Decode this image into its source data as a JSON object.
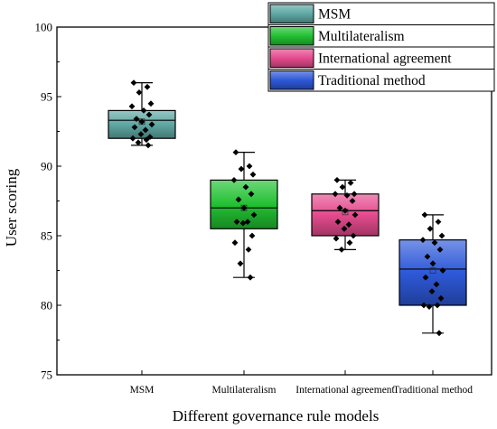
{
  "chart_data": {
    "type": "box",
    "xlabel": "Different governance rule models",
    "ylabel": "User scoring",
    "ylim": [
      75,
      100
    ],
    "yticks": [
      75,
      80,
      85,
      90,
      95,
      100
    ],
    "legend_position": "top-right",
    "series": [
      {
        "name": "MSM",
        "category": "MSM",
        "color": "#5fa8a4",
        "q1": 92.0,
        "median": 93.3,
        "q3": 94.0,
        "mean": 93.2,
        "whisker_low": 91.5,
        "whisker_high": 96.0,
        "points": [
          96.0,
          95.7,
          95.3,
          94.5,
          94.3,
          94.0,
          93.7,
          93.4,
          93.2,
          93.0,
          92.8,
          92.6,
          92.3,
          92.1,
          92.0,
          91.9,
          91.7,
          91.5
        ]
      },
      {
        "name": "Multilateralism",
        "category": "Multilateralism",
        "color": "#22c132",
        "q1": 85.5,
        "median": 87.0,
        "q3": 89.0,
        "mean": 87.0,
        "whisker_low": 82.0,
        "whisker_high": 91.0,
        "points": [
          91.0,
          90.0,
          89.8,
          89.4,
          89.0,
          88.5,
          88.0,
          87.6,
          87.0,
          86.5,
          86.0,
          86.0,
          85.9,
          85.0,
          84.5,
          84.0,
          83.0,
          82.0
        ]
      },
      {
        "name": "International agreement",
        "category": "International agreement",
        "color": "#e54b8e",
        "q1": 85.0,
        "median": 86.8,
        "q3": 88.0,
        "mean": 86.7,
        "whisker_low": 84.0,
        "whisker_high": 89.0,
        "points": [
          89.0,
          88.8,
          88.5,
          88.0,
          88.0,
          87.9,
          87.5,
          87.0,
          86.8,
          86.5,
          86.0,
          85.8,
          85.5,
          85.0,
          84.8,
          84.5,
          84.0
        ]
      },
      {
        "name": "Traditional method",
        "category": "Traditional method",
        "color": "#2e59d9",
        "q1": 80.0,
        "median": 82.6,
        "q3": 84.7,
        "mean": 82.5,
        "whisker_low": 78.0,
        "whisker_high": 86.5,
        "points": [
          86.5,
          86.0,
          85.5,
          85.0,
          84.7,
          84.5,
          84.0,
          83.5,
          83.0,
          82.5,
          82.0,
          81.5,
          81.0,
          80.5,
          80.0,
          80.0,
          79.9,
          78.0
        ]
      }
    ]
  }
}
